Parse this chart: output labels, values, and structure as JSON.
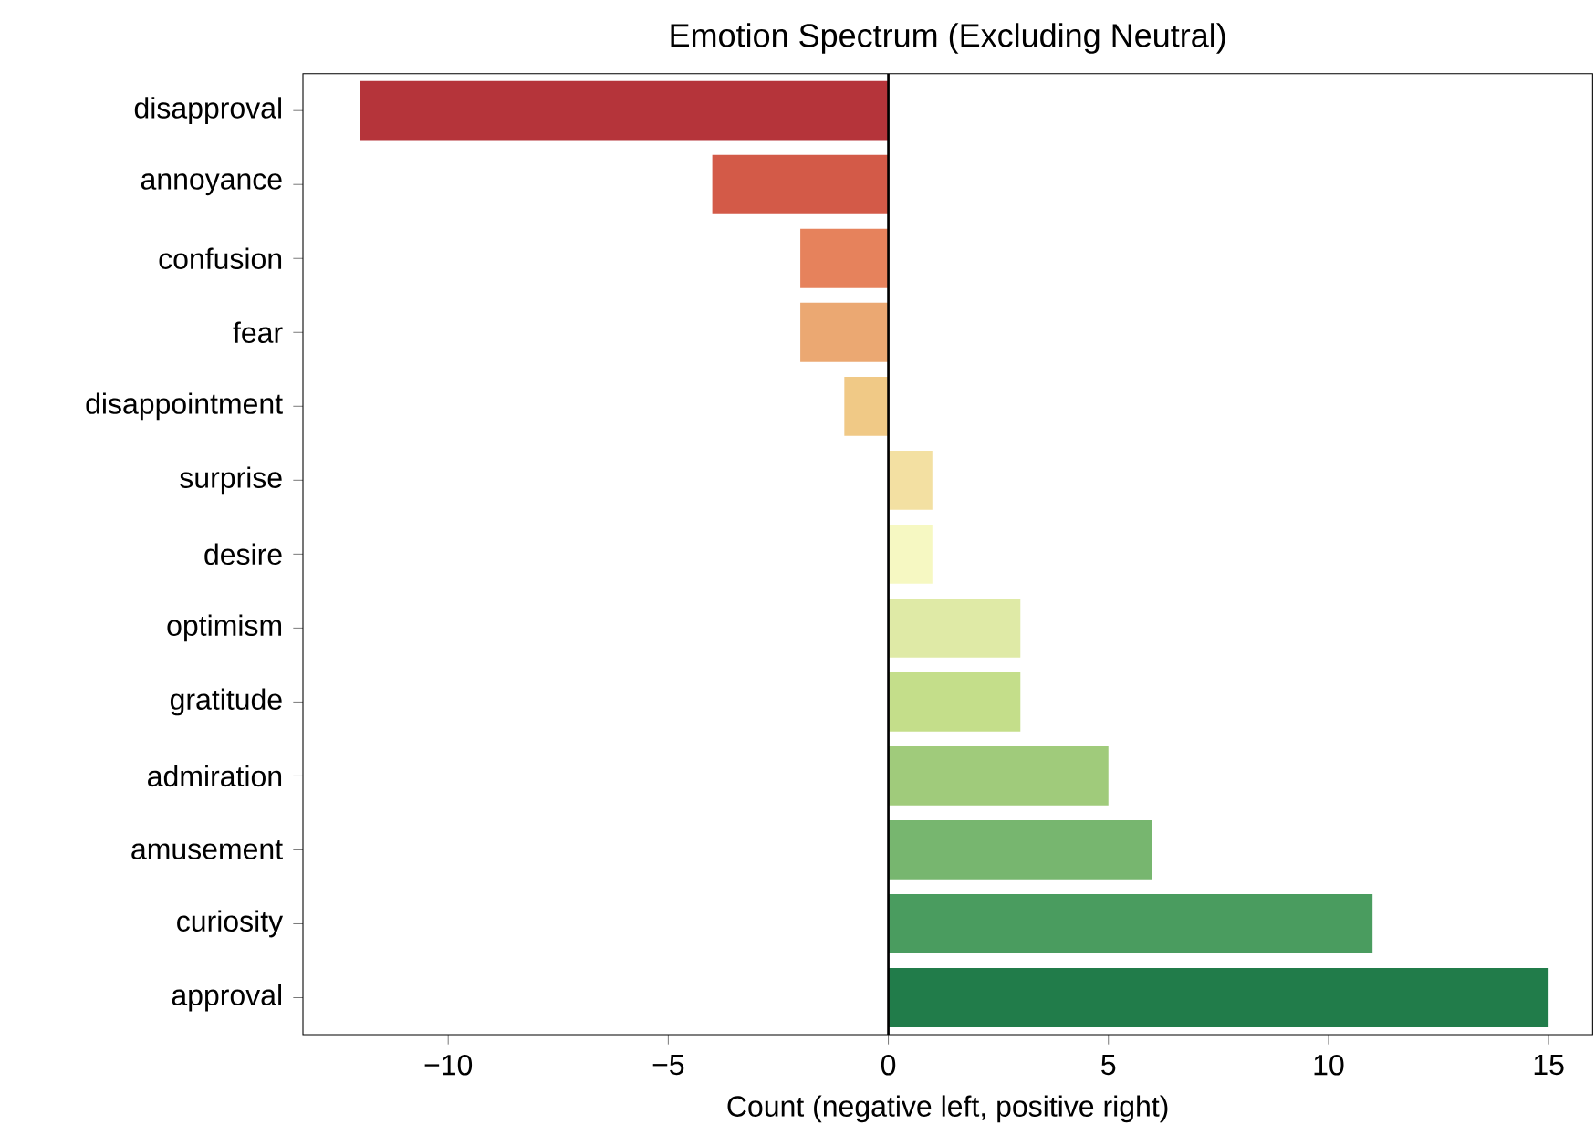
{
  "chart_data": {
    "type": "bar",
    "orientation": "horizontal",
    "title": "Emotion Spectrum (Excluding Neutral)",
    "xlabel": "Count (negative left, positive right)",
    "categories": [
      "disapproval",
      "annoyance",
      "confusion",
      "fear",
      "disappointment",
      "surprise",
      "desire",
      "optimism",
      "gratitude",
      "admiration",
      "amusement",
      "curiosity",
      "approval"
    ],
    "values": [
      -12,
      -4,
      -2,
      -2,
      -1,
      1,
      1,
      3,
      3,
      5,
      6,
      11,
      15
    ],
    "colors": [
      "#b5343a",
      "#d35a48",
      "#e6825c",
      "#eba872",
      "#f0c986",
      "#f3e0a2",
      "#f6f8c2",
      "#dfeaa6",
      "#c4de8a",
      "#a0cb7b",
      "#77b66f",
      "#4a9c5f",
      "#217c4a"
    ],
    "xlim": [
      -13.3,
      16
    ],
    "xticks": [
      {
        "value": -10,
        "label": "−10"
      },
      {
        "value": -5,
        "label": "−5"
      },
      0,
      5,
      10,
      15
    ],
    "ref_lines": [
      {
        "axis": "x",
        "value": 0,
        "color": "#000000"
      }
    ]
  }
}
